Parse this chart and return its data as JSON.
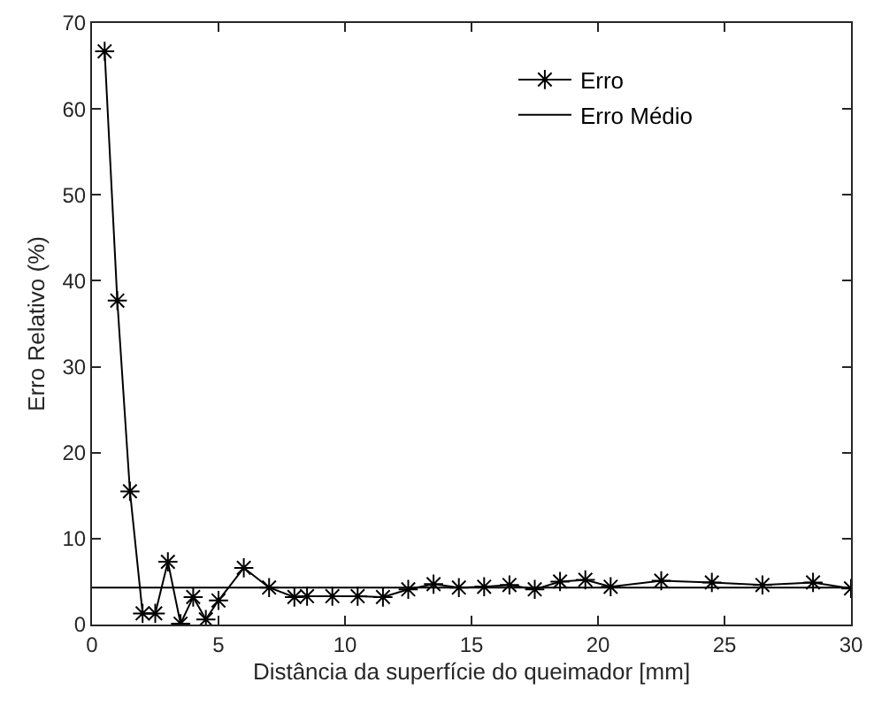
{
  "chart_data": {
    "type": "line",
    "xlabel": "Distância da superfície do queimador [mm]",
    "ylabel": "Erro Relativo (%)",
    "x": [
      0.5,
      1,
      1.5,
      2,
      2.5,
      3,
      3.5,
      4,
      4.5,
      5,
      6,
      7,
      8,
      8.5,
      9.5,
      10.5,
      11.5,
      12.5,
      13.5,
      14.5,
      15.5,
      16.5,
      17.5,
      18.5,
      19.5,
      20.5,
      22.5,
      24.5,
      26.5,
      28.5,
      30
    ],
    "series": [
      {
        "name": "Erro",
        "color": "#000000",
        "marker": "cross",
        "line_style": "solid",
        "values": [
          66.7,
          37.7,
          15.5,
          1.3,
          1.3,
          7.3,
          0.1,
          3.2,
          0.6,
          2.8,
          6.6,
          4.3,
          3.2,
          3.3,
          3.3,
          3.3,
          3.2,
          4.1,
          4.7,
          4.3,
          4.4,
          4.6,
          4.1,
          5.0,
          5.2,
          4.4,
          5.1,
          4.9,
          4.6,
          4.9,
          4.2
        ]
      },
      {
        "name": "Erro Médio",
        "color": "#000000",
        "line_style": "solid",
        "x": [
          0,
          30
        ],
        "values": [
          4.3,
          4.3
        ]
      }
    ],
    "xlim": [
      0,
      30
    ],
    "xticks": [
      0,
      5,
      10,
      15,
      20,
      25,
      30
    ],
    "ylim": [
      0,
      70
    ],
    "yticks": [
      0,
      10,
      20,
      30,
      40,
      50,
      60,
      70
    ],
    "legend": "top right"
  }
}
